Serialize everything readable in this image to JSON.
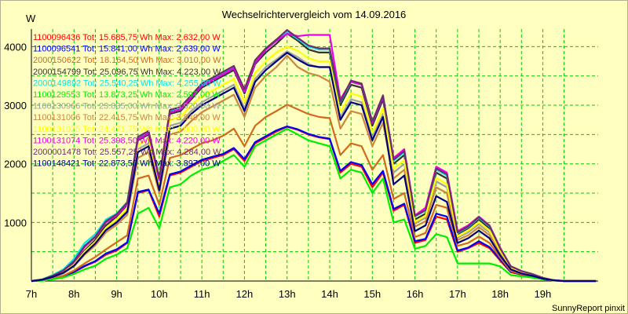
{
  "chart_data": {
    "type": "line",
    "title": "Wechselrichtervergleich vom 14.09.2016",
    "ylabel": "W",
    "xlabel": "",
    "credit": "SunnyReport pinxit",
    "grid": true,
    "legend_position": "top-left",
    "ylim": [
      0,
      4300
    ],
    "y_ticks": [
      1000,
      2000,
      3000,
      4000
    ],
    "xlim": [
      7,
      20.3
    ],
    "x_ticks": [
      {
        "value": 7,
        "label": "7h"
      },
      {
        "value": 8,
        "label": "8h"
      },
      {
        "value": 9,
        "label": "9h"
      },
      {
        "value": 10,
        "label": "10h"
      },
      {
        "value": 11,
        "label": "11h"
      },
      {
        "value": 12,
        "label": "12h"
      },
      {
        "value": 13,
        "label": "13h"
      },
      {
        "value": 14,
        "label": "14h"
      },
      {
        "value": 15,
        "label": "15h"
      },
      {
        "value": 16,
        "label": "16h"
      },
      {
        "value": 17,
        "label": "17h"
      },
      {
        "value": 18,
        "label": "18h"
      },
      {
        "value": 19,
        "label": "19h"
      }
    ],
    "x": [
      7,
      7.25,
      7.5,
      7.75,
      8,
      8.25,
      8.5,
      8.75,
      9,
      9.25,
      9.5,
      9.75,
      10,
      10.25,
      10.5,
      10.75,
      11,
      11.25,
      11.5,
      11.75,
      12,
      12.25,
      12.5,
      12.75,
      13,
      13.25,
      13.5,
      13.75,
      14,
      14.25,
      14.5,
      14.75,
      15,
      15.25,
      15.5,
      15.75,
      16,
      16.25,
      16.5,
      16.75,
      17,
      17.25,
      17.5,
      17.75,
      18,
      18.25,
      18.5,
      18.75,
      19,
      19.25,
      19.5,
      19.75,
      20,
      20.25
    ],
    "series": [
      {
        "name": "1100096436",
        "label": "1100096436 Tot: 15.685,75 Wh Max: 2.632,00 W",
        "color": "#ff0000",
        "values": [
          0,
          10,
          40,
          80,
          150,
          250,
          330,
          450,
          520,
          650,
          1500,
          1550,
          1100,
          1800,
          1850,
          1950,
          2050,
          2100,
          2150,
          2250,
          2050,
          2350,
          2450,
          2550,
          2632,
          2580,
          2500,
          2450,
          2420,
          1850,
          2000,
          1950,
          1600,
          1850,
          1200,
          1300,
          650,
          700,
          1100,
          1050,
          500,
          560,
          650,
          560,
          350,
          150,
          110,
          80,
          40,
          10,
          0,
          0,
          0,
          0
        ]
      },
      {
        "name": "1100096541",
        "label": "1100096541 Tot: 15.841,00 Wh Max: 2.639,00 W",
        "color": "#0000ff",
        "values": [
          0,
          10,
          40,
          80,
          160,
          260,
          340,
          470,
          540,
          660,
          1520,
          1560,
          1150,
          1820,
          1870,
          1970,
          2070,
          2120,
          2170,
          2270,
          2080,
          2370,
          2470,
          2570,
          2639,
          2590,
          2510,
          2460,
          2430,
          1880,
          2030,
          1980,
          1650,
          1880,
          1230,
          1320,
          680,
          720,
          1150,
          1100,
          520,
          570,
          680,
          580,
          370,
          160,
          120,
          80,
          40,
          10,
          0,
          0,
          0,
          0
        ]
      },
      {
        "name": "2000150622",
        "label": "2000150622 Tot: 18.164,50 Wh Max: 3.010,00 W",
        "color": "#d2691e",
        "values": [
          0,
          10,
          40,
          90,
          180,
          300,
          410,
          540,
          660,
          780,
          1750,
          1800,
          1300,
          2100,
          2150,
          2250,
          2350,
          2400,
          2480,
          2600,
          2300,
          2650,
          2800,
          2900,
          3010,
          2930,
          2850,
          2800,
          2780,
          2150,
          2350,
          2300,
          1900,
          2150,
          1400,
          1500,
          750,
          820,
          1300,
          1250,
          600,
          650,
          760,
          650,
          400,
          170,
          120,
          90,
          40,
          10,
          0,
          0,
          0,
          0
        ]
      },
      {
        "name": "2000154799",
        "label": "2000154799 Tot: 25.096,75 Wh Max: 4.223,00 W",
        "color": "#333333",
        "values": [
          0,
          20,
          80,
          160,
          300,
          520,
          700,
          950,
          1100,
          1300,
          2400,
          2500,
          1700,
          2850,
          2900,
          3100,
          3300,
          3400,
          3500,
          3600,
          3200,
          3700,
          3900,
          4050,
          4223,
          4100,
          3950,
          3900,
          3900,
          3000,
          3350,
          3300,
          2650,
          3100,
          2000,
          2150,
          1050,
          1150,
          1850,
          1750,
          800,
          900,
          1050,
          900,
          550,
          240,
          160,
          110,
          50,
          15,
          0,
          0,
          0,
          0
        ]
      },
      {
        "name": "2000149892",
        "label": "2000149892 Tot: 25.540,25 Wh Max: 4.255,00 W",
        "color": "#00e5ee",
        "values": [
          0,
          30,
          100,
          200,
          380,
          650,
          800,
          1050,
          1150,
          1350,
          2450,
          2550,
          1750,
          2900,
          2950,
          3150,
          3350,
          3450,
          3550,
          3650,
          3250,
          3750,
          3950,
          4100,
          4255,
          4130,
          4000,
          3950,
          3950,
          3050,
          3400,
          3350,
          2700,
          3150,
          2050,
          2200,
          1100,
          1200,
          1900,
          1800,
          820,
          920,
          1080,
          930,
          560,
          250,
          170,
          120,
          55,
          15,
          0,
          0,
          0,
          0
        ]
      },
      {
        "name": "1100129553",
        "label": "1100129553 Tot: 13.873,25 Wh Max: 2.597,00 W",
        "color": "#00ee00",
        "values": [
          0,
          5,
          30,
          60,
          120,
          200,
          260,
          380,
          450,
          560,
          1150,
          1250,
          900,
          1600,
          1650,
          1800,
          1900,
          1950,
          2050,
          2150,
          1950,
          2300,
          2400,
          2500,
          2597,
          2500,
          2400,
          2350,
          2300,
          1750,
          1900,
          1850,
          1500,
          1750,
          1000,
          1050,
          550,
          600,
          800,
          750,
          300,
          300,
          300,
          300,
          250,
          100,
          80,
          60,
          30,
          10,
          0,
          0,
          0,
          0
        ]
      },
      {
        "name": "1100130966",
        "label": "1100130966 Tot: 23.835,00 Wh Max: 3.920,00 W",
        "color": "#a0a0a0",
        "values": [
          0,
          20,
          70,
          140,
          270,
          480,
          650,
          880,
          1020,
          1200,
          2250,
          2350,
          1600,
          2650,
          2700,
          2900,
          3050,
          3150,
          3250,
          3350,
          2950,
          3450,
          3650,
          3780,
          3920,
          3820,
          3700,
          3650,
          3650,
          2800,
          3100,
          3050,
          2450,
          2850,
          1850,
          2000,
          980,
          1080,
          1700,
          1600,
          740,
          830,
          970,
          830,
          500,
          220,
          150,
          100,
          45,
          12,
          0,
          0,
          0,
          0
        ]
      },
      {
        "name": "1100131006",
        "label": "1100131006 Tot: 22.415,75 Wh Max: 3.849,00 W",
        "color": "#cd853f",
        "values": [
          0,
          20,
          60,
          130,
          250,
          450,
          610,
          830,
          960,
          1130,
          2100,
          2200,
          1500,
          2500,
          2550,
          2730,
          2880,
          2980,
          3080,
          3180,
          2800,
          3300,
          3500,
          3650,
          3849,
          3650,
          3550,
          3500,
          3400,
          2600,
          2900,
          2850,
          2300,
          2700,
          1750,
          1900,
          930,
          1020,
          1600,
          1500,
          700,
          780,
          920,
          780,
          470,
          210,
          140,
          95,
          42,
          12,
          0,
          0,
          0,
          0
        ]
      },
      {
        "name": "1100131025",
        "label": "1100131025 Tot: 24.471,75 Wh Max: 4.000,00 W",
        "color": "#ffff00",
        "values": [
          0,
          20,
          75,
          150,
          280,
          500,
          670,
          910,
          1050,
          1240,
          2320,
          2420,
          1650,
          2750,
          2800,
          3000,
          3150,
          3250,
          3350,
          3450,
          3050,
          3550,
          3750,
          3900,
          4000,
          3930,
          3800,
          3750,
          3750,
          2880,
          3200,
          3150,
          2530,
          2950,
          1920,
          2060,
          1010,
          1110,
          1760,
          1650,
          760,
          860,
          1000,
          860,
          520,
          230,
          150,
          105,
          47,
          13,
          0,
          0,
          0,
          0
        ]
      },
      {
        "name": "1100131074",
        "label": "1100131074 Tot: 25.398,50 Wh Max: 4.220,00 W",
        "color": "#ee00ee",
        "values": [
          0,
          25,
          90,
          180,
          330,
          580,
          750,
          1000,
          1120,
          1320,
          2420,
          2520,
          1720,
          2880,
          2930,
          3130,
          3330,
          3430,
          3530,
          3630,
          3230,
          3720,
          3950,
          4100,
          4220,
          4180,
          4200,
          4200,
          4200,
          3100,
          3400,
          3350,
          2700,
          3150,
          2100,
          2250,
          1120,
          1250,
          1950,
          1850,
          850,
          950,
          1100,
          950,
          570,
          250,
          170,
          120,
          55,
          15,
          0,
          0,
          0,
          0
        ]
      },
      {
        "name": "2000001478",
        "label": "2000001478 Tot: 25.557,25 Wh Max: 4.284,00 W",
        "color": "#6b2d6b",
        "values": [
          0,
          25,
          90,
          180,
          340,
          600,
          760,
          1020,
          1140,
          1340,
          2460,
          2560,
          1760,
          2920,
          2970,
          3170,
          3370,
          3470,
          3570,
          3670,
          3270,
          3770,
          3970,
          4120,
          4284,
          4150,
          4020,
          3970,
          3970,
          3060,
          3420,
          3370,
          2720,
          3170,
          2070,
          2220,
          1110,
          1210,
          1920,
          1820,
          830,
          930,
          1090,
          940,
          560,
          250,
          170,
          120,
          55,
          15,
          0,
          0,
          0,
          0
        ]
      },
      {
        "name": "1100148421",
        "label": "1100148421 Tot: 22.873,50 Wh Max: 3.897,00 W",
        "color": "#000080",
        "values": [
          0,
          20,
          70,
          140,
          260,
          470,
          640,
          870,
          1000,
          1180,
          2200,
          2300,
          1550,
          2600,
          2650,
          2850,
          3000,
          3100,
          3200,
          3300,
          2900,
          3400,
          3600,
          3750,
          3897,
          3780,
          3680,
          3650,
          3650,
          2750,
          3050,
          3000,
          2400,
          2800,
          1650,
          1800,
          850,
          950,
          1450,
          1350,
          650,
          730,
          860,
          730,
          440,
          200,
          130,
          90,
          40,
          12,
          0,
          0,
          0,
          0
        ]
      }
    ]
  }
}
